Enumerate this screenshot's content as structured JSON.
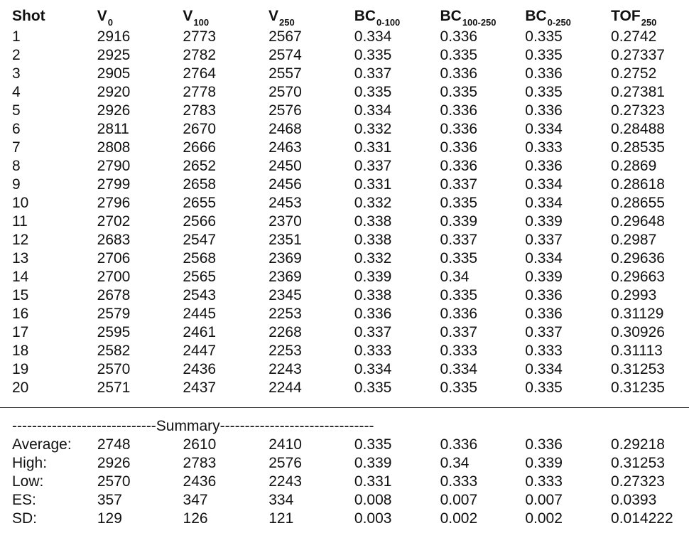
{
  "headers": [
    {
      "base": "Shot",
      "sub": ""
    },
    {
      "base": "V",
      "sub": "0"
    },
    {
      "base": "V",
      "sub": "100"
    },
    {
      "base": "V",
      "sub": "250"
    },
    {
      "base": "BC",
      "sub": "0-100"
    },
    {
      "base": "BC",
      "sub": "100-250"
    },
    {
      "base": "BC",
      "sub": "0-250"
    },
    {
      "base": "TOF",
      "sub": "250"
    }
  ],
  "rows": [
    [
      "1",
      "2916",
      "2773",
      "2567",
      "0.334",
      "0.336",
      "0.335",
      "0.2742"
    ],
    [
      "2",
      "2925",
      "2782",
      "2574",
      "0.335",
      "0.335",
      "0.335",
      "0.27337"
    ],
    [
      "3",
      "2905",
      "2764",
      "2557",
      "0.337",
      "0.336",
      "0.336",
      "0.2752"
    ],
    [
      "4",
      "2920",
      "2778",
      "2570",
      "0.335",
      "0.335",
      "0.335",
      "0.27381"
    ],
    [
      "5",
      "2926",
      "2783",
      "2576",
      "0.334",
      "0.336",
      "0.336",
      "0.27323"
    ],
    [
      "6",
      "2811",
      "2670",
      "2468",
      "0.332",
      "0.336",
      "0.334",
      "0.28488"
    ],
    [
      "7",
      "2808",
      "2666",
      "2463",
      "0.331",
      "0.336",
      "0.333",
      "0.28535"
    ],
    [
      "8",
      "2790",
      "2652",
      "2450",
      "0.337",
      "0.336",
      "0.336",
      "0.2869"
    ],
    [
      "9",
      "2799",
      "2658",
      "2456",
      "0.331",
      "0.337",
      "0.334",
      "0.28618"
    ],
    [
      "10",
      "2796",
      "2655",
      "2453",
      "0.332",
      "0.335",
      "0.334",
      "0.28655"
    ],
    [
      "11",
      "2702",
      "2566",
      "2370",
      "0.338",
      "0.339",
      "0.339",
      "0.29648"
    ],
    [
      "12",
      "2683",
      "2547",
      "2351",
      "0.338",
      "0.337",
      "0.337",
      "0.2987"
    ],
    [
      "13",
      "2706",
      "2568",
      "2369",
      "0.332",
      "0.335",
      "0.334",
      "0.29636"
    ],
    [
      "14",
      "2700",
      "2565",
      "2369",
      "0.339",
      "0.34",
      "0.339",
      "0.29663"
    ],
    [
      "15",
      "2678",
      "2543",
      "2345",
      "0.338",
      "0.335",
      "0.336",
      "0.2993"
    ],
    [
      "16",
      "2579",
      "2445",
      "2253",
      "0.336",
      "0.336",
      "0.336",
      "0.31129"
    ],
    [
      "17",
      "2595",
      "2461",
      "2268",
      "0.337",
      "0.337",
      "0.337",
      "0.30926"
    ],
    [
      "18",
      "2582",
      "2447",
      "2253",
      "0.333",
      "0.333",
      "0.333",
      "0.31113"
    ],
    [
      "19",
      "2570",
      "2436",
      "2243",
      "0.334",
      "0.334",
      "0.334",
      "0.31253"
    ],
    [
      "20",
      "2571",
      "2437",
      "2244",
      "0.335",
      "0.335",
      "0.335",
      "0.31235"
    ]
  ],
  "summary_title": "-----------------------------Summary-------------------------------",
  "summary": [
    [
      "Average:",
      "2748",
      "2610",
      "2410",
      "0.335",
      "0.336",
      "0.336",
      "0.29218"
    ],
    [
      "High:",
      "2926",
      "2783",
      "2576",
      "0.339",
      "0.34",
      "0.339",
      "0.31253"
    ],
    [
      "Low:",
      "2570",
      "2436",
      "2243",
      "0.331",
      "0.333",
      "0.333",
      "0.27323"
    ],
    [
      "ES:",
      "357",
      "347",
      "334",
      "0.008",
      "0.007",
      "0.007",
      "0.0393"
    ],
    [
      "SD:",
      "129",
      "126",
      "121",
      "0.003",
      "0.002",
      "0.002",
      "0.014222"
    ]
  ]
}
